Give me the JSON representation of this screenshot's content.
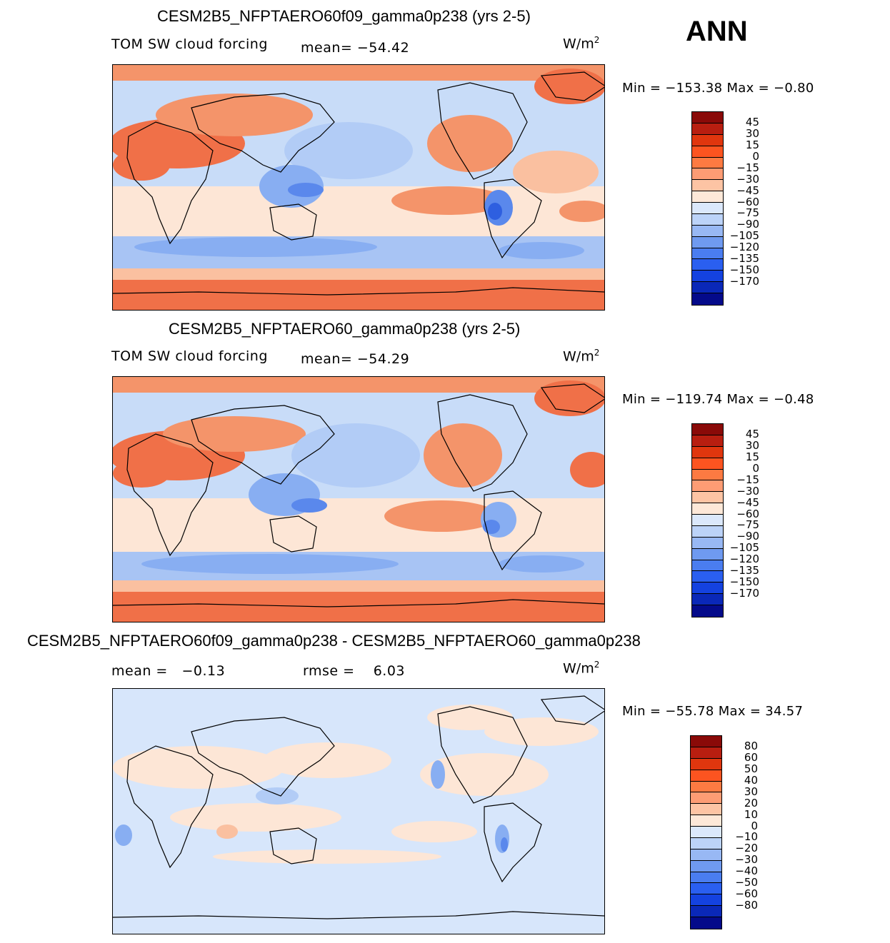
{
  "season": "ANN",
  "palette": {
    "ocean_base": "#c8dcf8",
    "red_dark": "#f07048",
    "red_mid": "#f4946a",
    "red_light": "#fac0a0",
    "cream": "#fde6d6",
    "blue_light": "#d7e6fb",
    "blue_mid": "#b2ccf6",
    "blue_strong": "#88aef2",
    "blue_deep": "#5a88ec",
    "blue_dark": "#2e5fe0",
    "coast": "#000000"
  },
  "panels": [
    {
      "title": "CESM2B5_NFPTAERO60f09_gamma0p238 (yrs 2-5)",
      "variable": "TOM SW cloud forcing",
      "stat_left": "mean= −54.42",
      "stat_right": "",
      "units_base": "W/m",
      "units_exp": "2",
      "minmax": "Min = −153.38 Max = −0.80",
      "colorbar": {
        "colors": [
          "#8a0a08",
          "#b81e10",
          "#e0360e",
          "#fc5420",
          "#fd7a42",
          "#fd9c74",
          "#fdc4a4",
          "#fde8d8",
          "#dbe8fb",
          "#bcd3f8",
          "#98b8f4",
          "#6f9af0",
          "#4a7df0",
          "#2a5ff0",
          "#1442e0",
          "#0a28b8",
          "#040a8a"
        ],
        "labels": [
          "45",
          "30",
          "15",
          "0",
          "−15",
          "−30",
          "−45",
          "−60",
          "−75",
          "−90",
          "−105",
          "−120",
          "−135",
          "−150",
          "−170"
        ]
      }
    },
    {
      "title": "CESM2B5_NFPTAERO60_gamma0p238 (yrs 2-5)",
      "variable": "TOM SW cloud forcing",
      "stat_left": "mean= −54.29",
      "stat_right": "",
      "units_base": "W/m",
      "units_exp": "2",
      "minmax": "Min = −119.74 Max = −0.48",
      "colorbar": {
        "colors": [
          "#8a0a08",
          "#b81e10",
          "#e0360e",
          "#fc5420",
          "#fd7a42",
          "#fd9c74",
          "#fdc4a4",
          "#fde8d8",
          "#dbe8fb",
          "#bcd3f8",
          "#98b8f4",
          "#6f9af0",
          "#4a7df0",
          "#2a5ff0",
          "#1442e0",
          "#0a28b8",
          "#040a8a"
        ],
        "labels": [
          "45",
          "30",
          "15",
          "0",
          "−15",
          "−30",
          "−45",
          "−60",
          "−75",
          "−90",
          "−105",
          "−120",
          "−135",
          "−150",
          "−170"
        ]
      }
    },
    {
      "title": "CESM2B5_NFPTAERO60f09_gamma0p238 - CESM2B5_NFPTAERO60_gamma0p238",
      "variable": "",
      "stat_left": "mean =   −0.13",
      "stat_right": "rmse =    6.03",
      "units_base": "W/m",
      "units_exp": "2",
      "minmax": "Min = −55.78 Max =  34.57",
      "colorbar": {
        "colors": [
          "#8a0a08",
          "#b81e10",
          "#e0360e",
          "#fc5420",
          "#fd7a42",
          "#fd9c74",
          "#fdc4a4",
          "#fde8d8",
          "#dbe8fb",
          "#bcd3f8",
          "#98b8f4",
          "#6f9af0",
          "#4a7df0",
          "#2a5ff0",
          "#1442e0",
          "#0a28b8",
          "#040a8a"
        ],
        "labels": [
          "80",
          "60",
          "50",
          "40",
          "30",
          "20",
          "10",
          "0",
          "−10",
          "−20",
          "−30",
          "−40",
          "−50",
          "−60",
          "−80"
        ]
      }
    }
  ]
}
